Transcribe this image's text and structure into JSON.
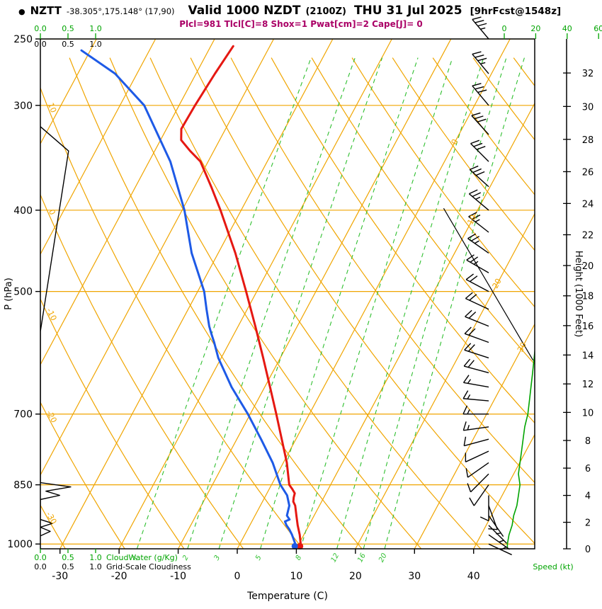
{
  "header": {
    "bullet": "●",
    "station": "NZTT",
    "coords": "-38.305°,175.148° (17,90)",
    "valid": "Valid 1000 NZDT",
    "valid_z": "(2100Z)",
    "date": "THU 31 Jul 2025",
    "fcst": "[9hrFcst@1548z]",
    "indices": "Plcl=981 Tlcl[C]=8 Shox=1 Pwat[cm]=2 Cape[J]= 0"
  },
  "colors": {
    "temperature": "#e51812",
    "dewpoint": "#1e5ae6",
    "grid": "#f0a500",
    "mixing": "#2fbf2f",
    "speed": "#00a400",
    "cloudiness": "#000000",
    "indices": "#aa0066"
  },
  "axes": {
    "pressure": {
      "label": "P (hPa)",
      "ticks": [
        250,
        300,
        400,
        500,
        700,
        850,
        1000
      ]
    },
    "temperature": {
      "label": "Temperature (C)",
      "ticks": [
        -30,
        -20,
        -10,
        0,
        10,
        20,
        30,
        40
      ]
    },
    "height": {
      "label": "Height (1000 Feet)",
      "ticks": [
        0,
        2,
        4,
        6,
        8,
        10,
        12,
        14,
        16,
        18,
        20,
        22,
        24,
        26,
        28,
        30,
        32
      ]
    },
    "speed": {
      "label": "Speed (kt)",
      "ticks": [
        0,
        20,
        40,
        60
      ]
    },
    "cloudwater": {
      "label": "CloudWater (g/Kg)",
      "ticks": [
        "0.0",
        "0.5",
        "1.0"
      ]
    },
    "cloudiness": {
      "label": "Grid-Scale Cloudiness",
      "ticks": [
        "0.0",
        "0.5",
        "1.0"
      ]
    }
  },
  "chart_data": {
    "type": "line",
    "subtype": "skew-t-log-p-sounding",
    "pressure_range_hpa": [
      250,
      1013.25
    ],
    "temperature_axis_range_c": [
      -30,
      40
    ],
    "series": [
      {
        "name": "Temperature",
        "units": [
          "hPa",
          "C"
        ],
        "color": "#e51812",
        "points": [
          [
            1008,
            10.4
          ],
          [
            1000,
            10.3
          ],
          [
            975,
            9.3
          ],
          [
            950,
            8.1
          ],
          [
            925,
            7.0
          ],
          [
            900,
            5.9
          ],
          [
            890,
            5.2
          ],
          [
            880,
            4.9
          ],
          [
            870,
            4.7
          ],
          [
            860,
            3.9
          ],
          [
            850,
            3.0
          ],
          [
            800,
            0.6
          ],
          [
            750,
            -2.4
          ],
          [
            700,
            -5.6
          ],
          [
            650,
            -9.1
          ],
          [
            600,
            -12.9
          ],
          [
            550,
            -17.1
          ],
          [
            500,
            -21.8
          ],
          [
            450,
            -27.1
          ],
          [
            400,
            -33.5
          ],
          [
            375,
            -37.2
          ],
          [
            350,
            -41.3
          ],
          [
            340,
            -44.0
          ],
          [
            330,
            -46.5
          ],
          [
            320,
            -47.5
          ],
          [
            300,
            -47.3
          ],
          [
            275,
            -46.8
          ],
          [
            255,
            -46.2
          ]
        ]
      },
      {
        "name": "Dewpoint",
        "units": [
          "hPa",
          "C"
        ],
        "color": "#1e5ae6",
        "points": [
          [
            1008,
            9.5
          ],
          [
            1000,
            9.4
          ],
          [
            975,
            8.0
          ],
          [
            960,
            7.0
          ],
          [
            950,
            6.2
          ],
          [
            940,
            5.6
          ],
          [
            935,
            6.2
          ],
          [
            925,
            5.4
          ],
          [
            900,
            4.9
          ],
          [
            875,
            3.6
          ],
          [
            850,
            1.5
          ],
          [
            800,
            -1.8
          ],
          [
            750,
            -5.9
          ],
          [
            700,
            -10.4
          ],
          [
            650,
            -15.6
          ],
          [
            600,
            -20.5
          ],
          [
            575,
            -22.6
          ],
          [
            560,
            -24.0
          ],
          [
            550,
            -24.9
          ],
          [
            525,
            -26.9
          ],
          [
            500,
            -28.9
          ],
          [
            450,
            -34.5
          ],
          [
            400,
            -39.6
          ],
          [
            350,
            -46.4
          ],
          [
            300,
            -55.9
          ],
          [
            275,
            -63.7
          ],
          [
            258,
            -71.5
          ]
        ]
      },
      {
        "name": "Grid-Scale Cloudiness",
        "units": [
          "hPa",
          "fraction"
        ],
        "color": "#000000",
        "points": [
          [
            318,
            0
          ],
          [
            340,
            0.51
          ],
          [
            558,
            0
          ],
          [
            845,
            0
          ],
          [
            855,
            0.55
          ],
          [
            865,
            0.1
          ],
          [
            875,
            0.35
          ],
          [
            885,
            0
          ],
          [
            935,
            0
          ],
          [
            945,
            0.22
          ],
          [
            955,
            0
          ],
          [
            966,
            0.18
          ],
          [
            978,
            0
          ]
        ]
      },
      {
        "name": "Wind Speed",
        "units": [
          "hPa",
          "kt"
        ],
        "color": "#00a400",
        "points": [
          [
            250,
            35
          ],
          [
            275,
            34
          ],
          [
            300,
            32
          ],
          [
            325,
            30
          ],
          [
            350,
            29
          ],
          [
            375,
            28
          ],
          [
            400,
            26
          ],
          [
            425,
            25
          ],
          [
            450,
            24
          ],
          [
            475,
            23
          ],
          [
            500,
            22
          ],
          [
            525,
            21
          ],
          [
            550,
            21
          ],
          [
            575,
            20
          ],
          [
            600,
            19
          ],
          [
            625,
            18
          ],
          [
            650,
            17
          ],
          [
            675,
            16
          ],
          [
            700,
            15
          ],
          [
            725,
            13
          ],
          [
            750,
            12
          ],
          [
            775,
            11
          ],
          [
            800,
            10
          ],
          [
            825,
            9
          ],
          [
            850,
            10
          ],
          [
            875,
            9
          ],
          [
            900,
            8
          ],
          [
            925,
            6
          ],
          [
            950,
            5
          ],
          [
            975,
            3
          ],
          [
            1000,
            2
          ],
          [
            1010,
            2
          ]
        ]
      }
    ],
    "wind_barbs": [
      [
        250,
        320,
        35
      ],
      [
        275,
        320,
        34
      ],
      [
        300,
        320,
        32
      ],
      [
        325,
        318,
        30
      ],
      [
        350,
        315,
        29
      ],
      [
        375,
        312,
        28
      ],
      [
        400,
        310,
        26
      ],
      [
        425,
        308,
        25
      ],
      [
        450,
        305,
        24
      ],
      [
        475,
        300,
        23
      ],
      [
        500,
        298,
        22
      ],
      [
        525,
        295,
        21
      ],
      [
        550,
        292,
        21
      ],
      [
        575,
        290,
        20
      ],
      [
        600,
        288,
        19
      ],
      [
        625,
        285,
        18
      ],
      [
        650,
        280,
        17
      ],
      [
        675,
        275,
        16
      ],
      [
        700,
        270,
        15
      ],
      [
        725,
        262,
        13
      ],
      [
        750,
        255,
        12
      ],
      [
        775,
        245,
        11
      ],
      [
        800,
        235,
        10
      ],
      [
        825,
        225,
        9
      ],
      [
        850,
        215,
        10
      ],
      [
        875,
        180,
        9
      ],
      [
        900,
        160,
        8
      ],
      [
        925,
        145,
        6
      ],
      [
        950,
        135,
        5
      ],
      [
        975,
        125,
        3
      ],
      [
        1000,
        115,
        2
      ]
    ],
    "surface_markers": [
      {
        "name": "surface-temperature-dot",
        "color": "#e51812",
        "p": 1006,
        "value": 10.4
      },
      {
        "name": "surface-dewpoint-dot",
        "color": "#1e5ae6",
        "p": 1006,
        "value": 9.5
      }
    ],
    "mixing_ratio_lines_gkg": [
      1,
      2,
      3,
      5,
      8,
      12,
      16,
      20
    ],
    "isotherm_labels": [
      0,
      10,
      20,
      30
    ],
    "dry_adiabat_labels": [
      10,
      0,
      -10,
      -20,
      -30
    ],
    "aux_black_line": {
      "p1": 398,
      "t1": 4.1,
      "p2": 604,
      "t2": 33.0
    }
  }
}
